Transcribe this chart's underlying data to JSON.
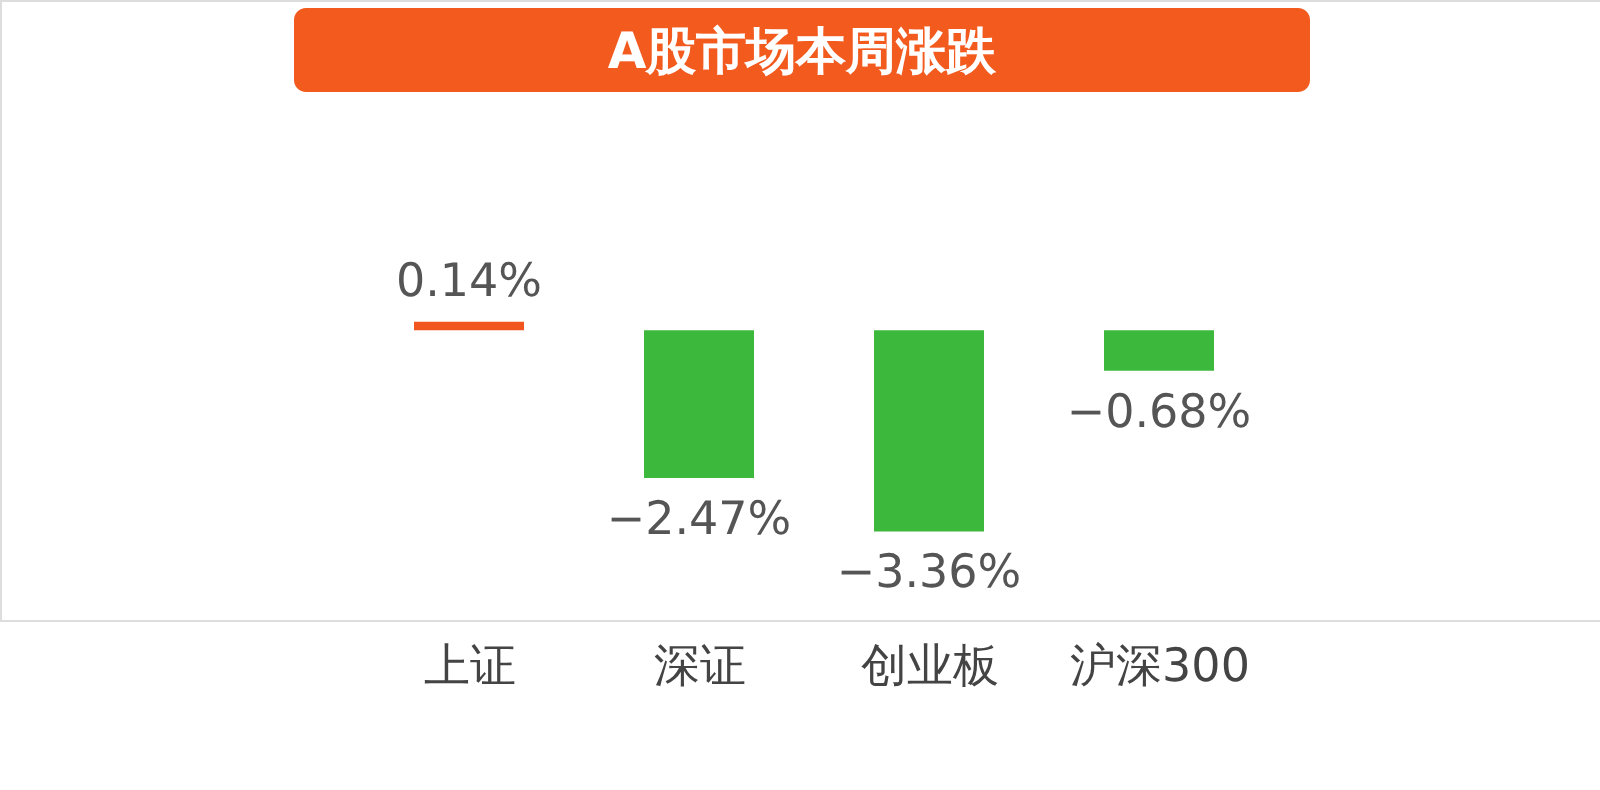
{
  "chart_data": {
    "type": "bar",
    "title": "A股市场本周涨跌",
    "categories": [
      "上证",
      "深证",
      "创业板",
      "沪深300"
    ],
    "values": [
      0.14,
      -2.47,
      -3.36,
      -0.68
    ],
    "colors": [
      "#f0561e",
      "#3cb83c",
      "#3cb83c",
      "#3cb83c"
    ],
    "value_labels": [
      "0.14%",
      "−2.47%",
      "−3.36%",
      "−0.68%"
    ]
  }
}
